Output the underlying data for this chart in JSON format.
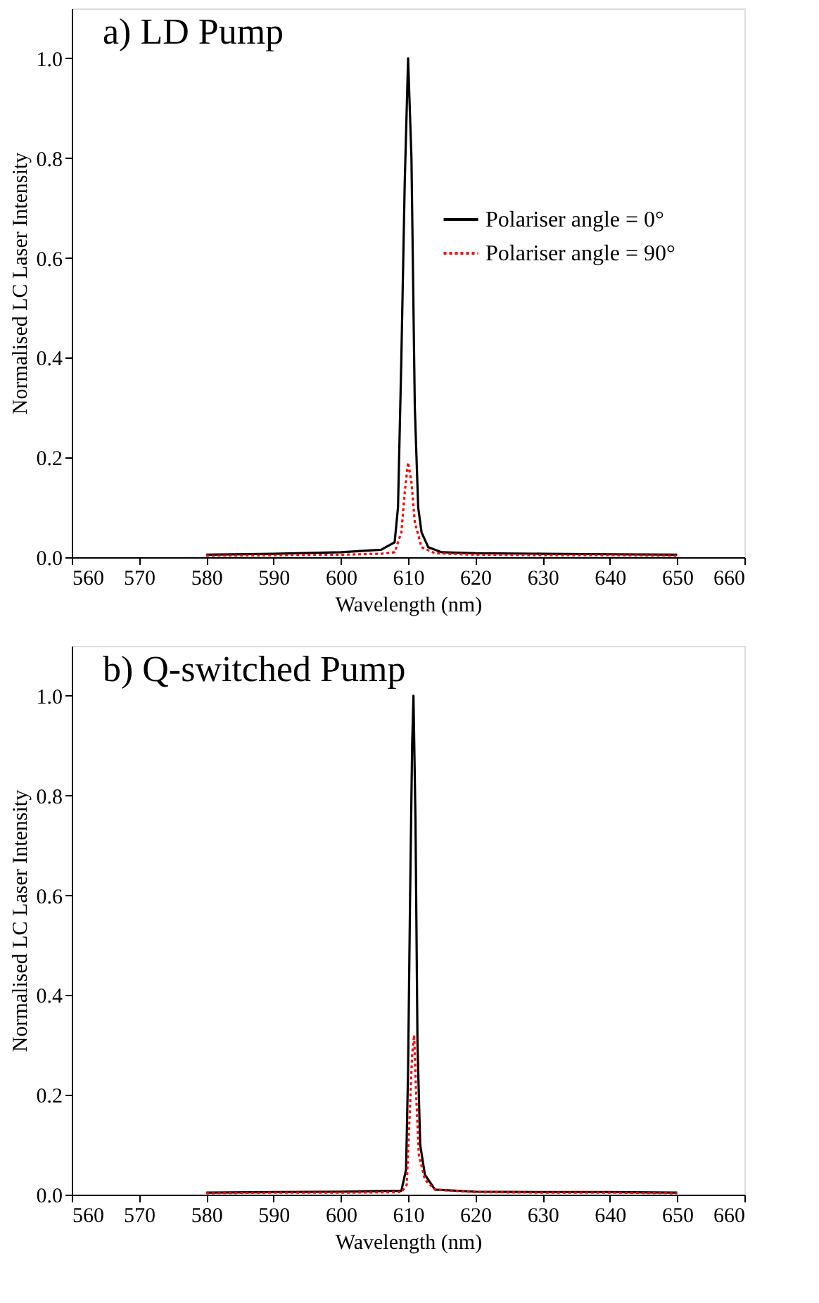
{
  "chart_data": [
    {
      "type": "line",
      "title": "a)  LD Pump",
      "xlabel": "Wavelength (nm)",
      "ylabel": "Normalised LC Laser Intensity",
      "xlim": [
        560,
        660
      ],
      "xticks": [
        560,
        570,
        580,
        590,
        600,
        610,
        620,
        630,
        640,
        650,
        660
      ],
      "ylim": [
        0,
        1.1
      ],
      "yticks": [
        {
          "value": 0,
          "label": "0.0"
        },
        {
          "value": 0.2,
          "label": "0.2"
        },
        {
          "value": 0.4,
          "label": "0.4"
        },
        {
          "value": 0.6,
          "label": "0.6"
        },
        {
          "value": 0.8,
          "label": "0.8"
        },
        {
          "value": 1.0,
          "label": "1.0"
        }
      ],
      "grid": false,
      "legend": "right",
      "series": [
        {
          "name": "Polariser angle = 0°",
          "color": "#000000",
          "line_style": "solid",
          "x": [
            580,
            590,
            600,
            606,
            608,
            608.5,
            609,
            609.5,
            610,
            610.5,
            611,
            611.5,
            612,
            613,
            615,
            620,
            630,
            640,
            650
          ],
          "values": [
            0.005,
            0.007,
            0.01,
            0.015,
            0.03,
            0.1,
            0.4,
            0.75,
            1.0,
            0.8,
            0.3,
            0.1,
            0.05,
            0.02,
            0.01,
            0.008,
            0.007,
            0.006,
            0.005
          ]
        },
        {
          "name": "Polariser angle = 90°",
          "color": "#ff0000",
          "line_style": "dotted",
          "x": [
            580,
            590,
            600,
            606,
            608,
            609,
            609.5,
            610,
            610.5,
            611,
            612,
            614,
            620,
            630,
            640,
            650
          ],
          "values": [
            0.003,
            0.004,
            0.005,
            0.007,
            0.01,
            0.05,
            0.13,
            0.19,
            0.15,
            0.07,
            0.02,
            0.008,
            0.005,
            0.004,
            0.004,
            0.003
          ]
        }
      ]
    },
    {
      "type": "line",
      "title": "b)  Q-switched Pump",
      "xlabel": "Wavelength (nm)",
      "ylabel": "Normalised LC Laser Intensity",
      "xlim": [
        560,
        660
      ],
      "xticks": [
        560,
        570,
        580,
        590,
        600,
        610,
        620,
        630,
        640,
        650,
        660
      ],
      "ylim": [
        0,
        1.1
      ],
      "yticks": [
        {
          "value": 0,
          "label": "0.0"
        },
        {
          "value": 0.2,
          "label": "0.2"
        },
        {
          "value": 0.4,
          "label": "0.4"
        },
        {
          "value": 0.6,
          "label": "0.6"
        },
        {
          "value": 0.8,
          "label": "0.8"
        },
        {
          "value": 1.0,
          "label": "1.0"
        }
      ],
      "grid": false,
      "legend": "right",
      "series": [
        {
          "name": "Polariser angle = 0°",
          "color": "#000000",
          "line_style": "solid",
          "x": [
            580,
            590,
            600,
            609,
            609.7,
            610,
            610.3,
            610.6,
            610.8,
            611.1,
            611.4,
            611.8,
            612.5,
            614,
            620,
            630,
            640,
            650
          ],
          "values": [
            0.004,
            0.005,
            0.006,
            0.008,
            0.05,
            0.25,
            0.6,
            0.9,
            1.0,
            0.75,
            0.3,
            0.1,
            0.04,
            0.01,
            0.006,
            0.005,
            0.005,
            0.004
          ]
        },
        {
          "name": "Polariser angle = 90°",
          "color": "#ff0000",
          "line_style": "dotted",
          "x": [
            580,
            590,
            600,
            609,
            609.8,
            610.2,
            610.6,
            610.9,
            611.2,
            611.6,
            612.5,
            614,
            620,
            630,
            640,
            650
          ],
          "values": [
            0.003,
            0.004,
            0.004,
            0.005,
            0.02,
            0.15,
            0.28,
            0.32,
            0.2,
            0.08,
            0.03,
            0.01,
            0.005,
            0.004,
            0.004,
            0.003
          ]
        }
      ]
    }
  ]
}
